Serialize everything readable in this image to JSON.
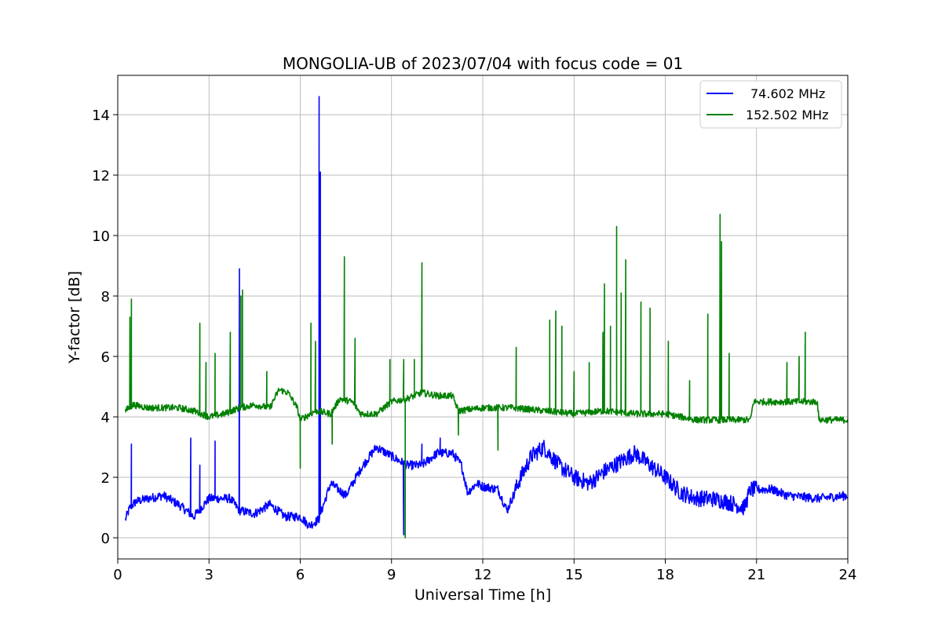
{
  "chart_data": {
    "type": "line",
    "title": "MONGOLIA-UB of 2023/07/04 with focus code = 01",
    "xlabel": "Universal Time [h]",
    "ylabel": "Y-factor [dB]",
    "xlim": [
      0,
      24
    ],
    "ylim": [
      -0.7,
      15.3
    ],
    "xticks": [
      0,
      3,
      6,
      9,
      12,
      15,
      18,
      21,
      24
    ],
    "xtick_labels": [
      "0",
      "3",
      "6",
      "9",
      "12",
      "15",
      "18",
      "21",
      "24"
    ],
    "yticks": [
      0,
      2,
      4,
      6,
      8,
      10,
      12,
      14
    ],
    "ytick_labels": [
      "0",
      "2",
      "4",
      "6",
      "8",
      "10",
      "12",
      "14"
    ],
    "grid": true,
    "legend_position": "top-right",
    "series": [
      {
        "name": "74.602 MHz",
        "color": "#0000ff",
        "baseline": [
          [
            0.25,
            0.6
          ],
          [
            0.4,
            1.0
          ],
          [
            0.6,
            1.2
          ],
          [
            1.0,
            1.3
          ],
          [
            1.5,
            1.4
          ],
          [
            2.0,
            1.1
          ],
          [
            2.5,
            0.7
          ],
          [
            3.0,
            1.3
          ],
          [
            3.7,
            1.3
          ],
          [
            4.0,
            0.9
          ],
          [
            4.5,
            0.8
          ],
          [
            5.0,
            1.1
          ],
          [
            5.5,
            0.7
          ],
          [
            6.0,
            0.7
          ],
          [
            6.3,
            0.4
          ],
          [
            6.6,
            0.6
          ],
          [
            7.0,
            1.8
          ],
          [
            7.5,
            1.4
          ],
          [
            8.0,
            2.3
          ],
          [
            8.5,
            3.0
          ],
          [
            9.0,
            2.7
          ],
          [
            9.5,
            2.4
          ],
          [
            10.0,
            2.4
          ],
          [
            10.5,
            2.8
          ],
          [
            11.0,
            2.8
          ],
          [
            11.3,
            2.4
          ],
          [
            11.5,
            1.5
          ],
          [
            11.8,
            1.8
          ],
          [
            12.0,
            1.7
          ],
          [
            12.5,
            1.6
          ],
          [
            12.8,
            0.9
          ],
          [
            13.2,
            1.9
          ],
          [
            13.6,
            2.7
          ],
          [
            14.0,
            3.0
          ],
          [
            14.5,
            2.4
          ],
          [
            15.0,
            2.0
          ],
          [
            15.5,
            1.8
          ],
          [
            16.0,
            2.2
          ],
          [
            16.5,
            2.5
          ],
          [
            17.0,
            2.8
          ],
          [
            17.5,
            2.4
          ],
          [
            18.0,
            2.0
          ],
          [
            18.5,
            1.5
          ],
          [
            19.0,
            1.3
          ],
          [
            19.5,
            1.3
          ],
          [
            20.0,
            1.2
          ],
          [
            20.6,
            1.0
          ],
          [
            20.8,
            1.6
          ],
          [
            21.5,
            1.6
          ],
          [
            22.0,
            1.4
          ],
          [
            23.0,
            1.3
          ],
          [
            24.0,
            1.4
          ]
        ],
        "spikes": [
          [
            0.45,
            3.1
          ],
          [
            2.4,
            3.3
          ],
          [
            2.7,
            2.4
          ],
          [
            3.2,
            3.2
          ],
          [
            4.0,
            8.9
          ],
          [
            6.62,
            14.6
          ],
          [
            6.66,
            12.1
          ],
          [
            9.4,
            0.1
          ],
          [
            10.0,
            3.1
          ],
          [
            10.6,
            3.3
          ]
        ]
      },
      {
        "name": "152.502 MHz",
        "color": "#008000",
        "baseline": [
          [
            0.25,
            4.2
          ],
          [
            0.5,
            4.4
          ],
          [
            1.0,
            4.3
          ],
          [
            1.5,
            4.3
          ],
          [
            2.0,
            4.3
          ],
          [
            2.5,
            4.2
          ],
          [
            3.0,
            4.0
          ],
          [
            3.5,
            4.1
          ],
          [
            4.0,
            4.3
          ],
          [
            4.5,
            4.4
          ],
          [
            5.0,
            4.3
          ],
          [
            5.3,
            4.9
          ],
          [
            5.6,
            4.8
          ],
          [
            5.9,
            4.3
          ],
          [
            6.0,
            3.9
          ],
          [
            6.5,
            4.2
          ],
          [
            7.0,
            4.1
          ],
          [
            7.3,
            4.6
          ],
          [
            7.7,
            4.5
          ],
          [
            8.0,
            4.1
          ],
          [
            8.5,
            4.1
          ],
          [
            9.0,
            4.5
          ],
          [
            9.5,
            4.6
          ],
          [
            10.0,
            4.8
          ],
          [
            10.5,
            4.7
          ],
          [
            11.0,
            4.7
          ],
          [
            11.2,
            4.2
          ],
          [
            12.0,
            4.3
          ],
          [
            12.5,
            4.3
          ],
          [
            13.0,
            4.3
          ],
          [
            14.0,
            4.2
          ],
          [
            15.0,
            4.1
          ],
          [
            16.0,
            4.2
          ],
          [
            17.0,
            4.1
          ],
          [
            18.0,
            4.1
          ],
          [
            18.5,
            4.0
          ],
          [
            19.0,
            3.9
          ],
          [
            20.0,
            3.9
          ],
          [
            20.8,
            3.9
          ],
          [
            20.9,
            4.5
          ],
          [
            21.5,
            4.5
          ],
          [
            22.0,
            4.5
          ],
          [
            23.0,
            4.5
          ],
          [
            23.05,
            3.9
          ],
          [
            24.0,
            3.9
          ]
        ],
        "spikes": [
          [
            0.4,
            7.3
          ],
          [
            0.45,
            7.9
          ],
          [
            2.7,
            7.1
          ],
          [
            2.9,
            5.8
          ],
          [
            3.2,
            6.1
          ],
          [
            3.7,
            6.8
          ],
          [
            4.05,
            8.0
          ],
          [
            4.1,
            8.2
          ],
          [
            4.9,
            5.5
          ],
          [
            6.35,
            7.1
          ],
          [
            6.5,
            6.5
          ],
          [
            7.45,
            9.3
          ],
          [
            7.8,
            6.6
          ],
          [
            8.95,
            5.9
          ],
          [
            9.4,
            5.9
          ],
          [
            9.75,
            5.9
          ],
          [
            10.0,
            9.1
          ],
          [
            13.1,
            6.3
          ],
          [
            14.2,
            7.2
          ],
          [
            14.4,
            7.5
          ],
          [
            14.6,
            7.0
          ],
          [
            15.0,
            5.5
          ],
          [
            15.5,
            5.8
          ],
          [
            15.95,
            6.8
          ],
          [
            16.0,
            8.4
          ],
          [
            16.2,
            7.0
          ],
          [
            16.4,
            10.3
          ],
          [
            16.55,
            8.1
          ],
          [
            16.7,
            9.2
          ],
          [
            17.2,
            7.8
          ],
          [
            17.5,
            7.6
          ],
          [
            18.1,
            6.5
          ],
          [
            18.8,
            5.2
          ],
          [
            19.4,
            7.4
          ],
          [
            19.8,
            10.7
          ],
          [
            19.85,
            9.8
          ],
          [
            20.1,
            6.1
          ],
          [
            22.0,
            5.8
          ],
          [
            22.4,
            6.0
          ],
          [
            22.6,
            6.8
          ]
        ],
        "dips": [
          [
            6.0,
            2.3
          ],
          [
            7.05,
            3.1
          ],
          [
            9.45,
            0.0
          ],
          [
            11.2,
            3.4
          ],
          [
            12.5,
            2.9
          ]
        ]
      }
    ]
  }
}
